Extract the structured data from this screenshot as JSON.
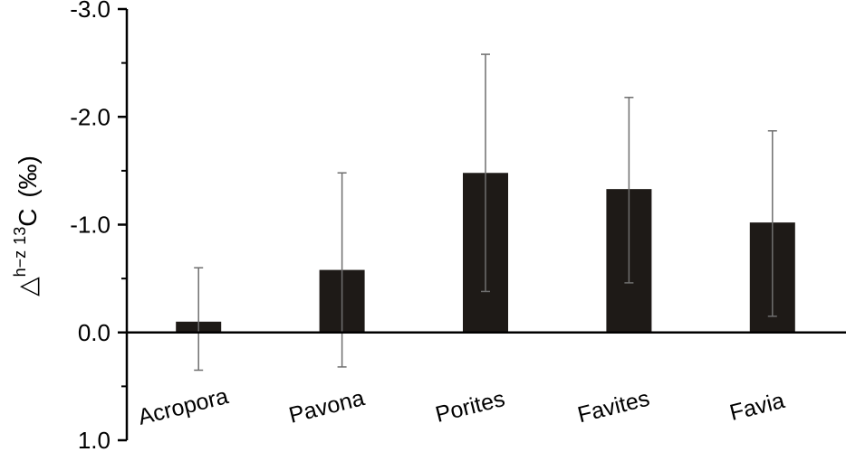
{
  "chart_data": {
    "type": "bar",
    "categories": [
      "Acropora",
      "Pavona",
      "Porites",
      "Favites",
      "Favia"
    ],
    "values": [
      -0.1,
      -0.58,
      -1.48,
      -1.33,
      -1.02
    ],
    "error_low": [
      0.35,
      0.32,
      -0.38,
      -0.46,
      -0.15
    ],
    "error_high": [
      -0.6,
      -1.48,
      -2.58,
      -2.18,
      -1.87
    ],
    "ylabel": {
      "prefix": "△",
      "sup1": "h−z",
      "sup2": "13",
      "main": "C",
      "unit": " (‰)"
    },
    "y_inverted": true,
    "ylim": [
      1.0,
      -3.0
    ],
    "yticks": [
      1.0,
      0.0,
      -1.0,
      -2.0,
      -3.0
    ],
    "ytick_labels": [
      "1.0",
      "0.0",
      "-1.0",
      "-2.0",
      "-3.0"
    ],
    "grid": false,
    "legend": "none",
    "bar_color": "#1e1a17",
    "error_color": "#6e6e6e",
    "axis_color": "#000000"
  }
}
